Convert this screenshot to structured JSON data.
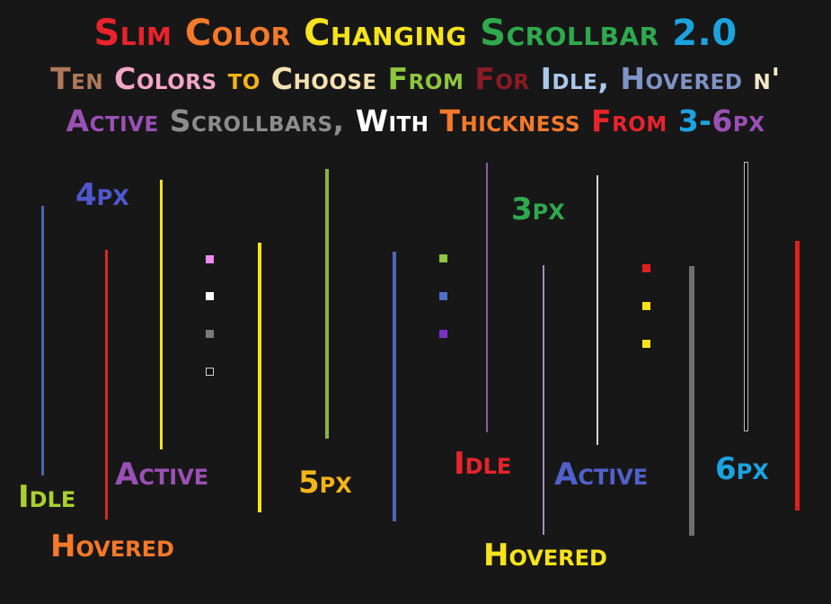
{
  "title_line1": [
    {
      "text": "Slim ",
      "color": "#e8232c"
    },
    {
      "text": "Color ",
      "color": "#f5792a"
    },
    {
      "text": "Changing ",
      "color": "#f6e31c"
    },
    {
      "text": "Scrollbar ",
      "color": "#2fa94d"
    },
    {
      "text": "2.0",
      "color": "#1ba3e0"
    }
  ],
  "title_line2": [
    {
      "text": "Ten ",
      "color": "#b07a5a"
    },
    {
      "text": "Colors ",
      "color": "#f3a6c4"
    },
    {
      "text": "to ",
      "color": "#f2b417"
    },
    {
      "text": "Choose ",
      "color": "#f4e0b0"
    },
    {
      "text": "From ",
      "color": "#8dc63f"
    },
    {
      "text": "For ",
      "color": "#8a1a24"
    },
    {
      "text": "Idle, ",
      "color": "#a9c8ec"
    },
    {
      "text": "Hovered ",
      "color": "#7f93c6"
    },
    {
      "text": "n'",
      "color": "#f3e8c8"
    }
  ],
  "title_line3": [
    {
      "text": "Active ",
      "color": "#9a50b5"
    },
    {
      "text": "Scrollbars, ",
      "color": "#8c8c8c"
    },
    {
      "text": "With ",
      "color": "#ffffff"
    },
    {
      "text": "Thickness ",
      "color": "#f5792a"
    },
    {
      "text": "From ",
      "color": "#e8232c"
    },
    {
      "text": "3-",
      "color": "#1ba3e0"
    },
    {
      "text": "6px",
      "color": "#9a50b5"
    }
  ],
  "labels": {
    "idle_1": "Idle",
    "hovered_1": "Hovered",
    "active_1": "Active",
    "px4": "4px",
    "px5": "5px",
    "idle_2": "Idle",
    "hovered_2": "Hovered",
    "active_2": "Active",
    "px3": "3px",
    "px6": "6px"
  },
  "colors": {
    "idle_1": "#a7d12f",
    "hovered_1": "#f5792a",
    "active_1": "#9a50b5",
    "px4": "#4f58cf",
    "px5": "#f2b417",
    "idle_2": "#e8232c",
    "hovered_2": "#f6e31c",
    "active_2": "#5061c9",
    "px3": "#2fa94d",
    "px6": "#1ba3e0",
    "scrollbar_blue": "#5065b3",
    "scrollbar_red": "#d62a22",
    "scrollbar_yellow": "#f6e31c",
    "scrollbar_green": "#8db43c",
    "scrollbar_violet": "#8a5aa8",
    "scrollbar_lilac": "#a98ac2",
    "scrollbar_white": "#d6d6d6",
    "scrollbar_grey": "#6f6f6f",
    "scrollbar_black": "#000000",
    "scrollbar_brightred": "#e01f1f",
    "swatch_pink": "#ee8bee",
    "swatch_white": "#ffffff",
    "swatch_grey": "#7a7a7a",
    "swatch_black": "#111111",
    "swatch_green": "#8dc63f",
    "swatch_blue": "#4f6ec7",
    "swatch_purple": "#7b2fc9",
    "swatch_red": "#e01f1f",
    "swatch_yellow": "#f6e31c"
  }
}
